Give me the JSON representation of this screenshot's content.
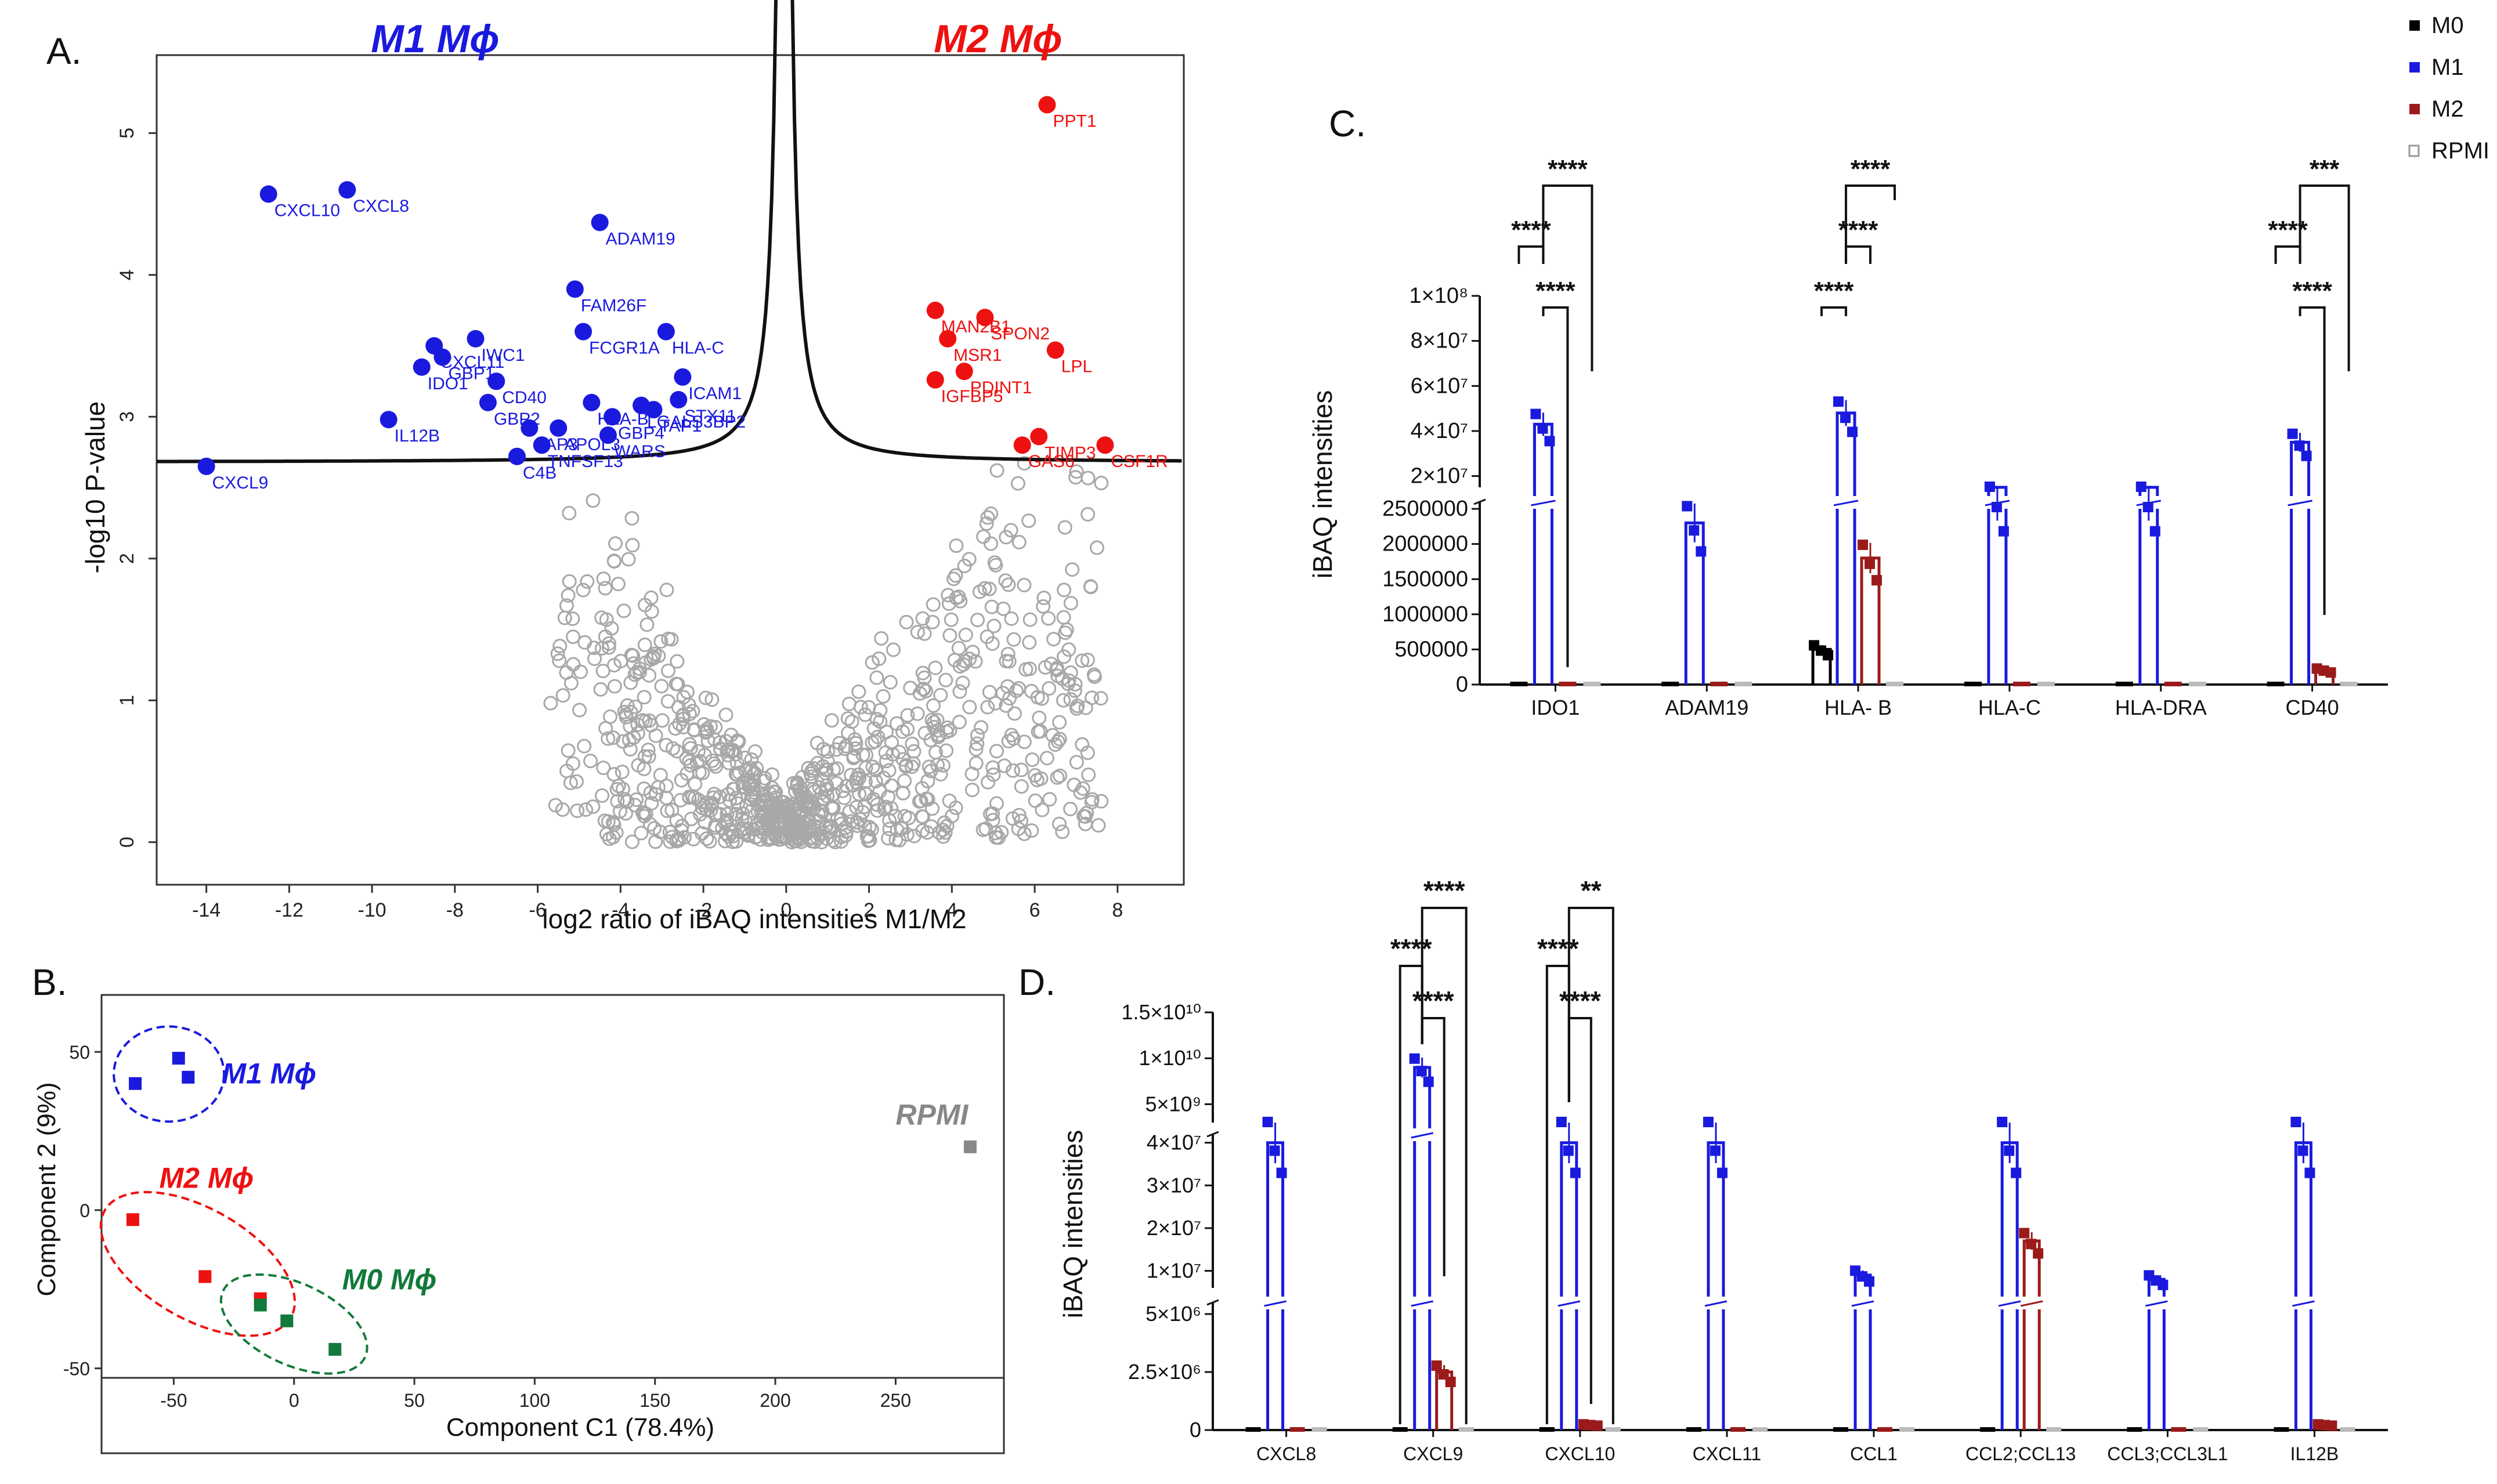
{
  "colors": {
    "m0": "#000000",
    "m1": "#1a1adf",
    "m2": "#9b1b1b",
    "rpmi": "#9a9a9a",
    "red": "#ee1111",
    "green": "#127a3a",
    "grey": "#666666",
    "bg_grey": "#a8a8a8"
  },
  "legend": {
    "items": [
      {
        "label": "M0",
        "color": "#000000"
      },
      {
        "label": "M1",
        "color": "#1a1adf"
      },
      {
        "label": "M2",
        "color": "#9b1b1b"
      },
      {
        "label": "RPMI",
        "color": "#9a9a9a"
      }
    ]
  },
  "chart_data": [
    {
      "panel": "A.",
      "type": "scatter",
      "title_left": "M1 Mϕ",
      "title_right": "M2 Mϕ",
      "xlabel": "log2 ratio of iBAQ intensities M1/M2",
      "ylabel": "-log10 P-value",
      "xlim": [
        -15.2,
        9.6
      ],
      "ylim": [
        -0.3,
        5.55
      ],
      "xticks": [
        -14,
        -12,
        -10,
        -8,
        -6,
        -4,
        -2,
        0,
        2,
        4,
        6,
        8
      ],
      "yticks": [
        0,
        1,
        2,
        3,
        4,
        5
      ],
      "m1_points": [
        {
          "x": -14.0,
          "y": 2.65,
          "label": "CXCL9"
        },
        {
          "x": -12.5,
          "y": 4.57,
          "label": "CXCL10"
        },
        {
          "x": -10.6,
          "y": 4.6,
          "label": "CXCL8"
        },
        {
          "x": -4.5,
          "y": 4.37,
          "label": "ADAM19"
        },
        {
          "x": -5.1,
          "y": 3.9,
          "label": "FAM26F"
        },
        {
          "x": -4.9,
          "y": 3.6,
          "label": "FCGR1A"
        },
        {
          "x": -2.9,
          "y": 3.6,
          "label": "HLA-C"
        },
        {
          "x": -8.5,
          "y": 3.5,
          "label": "CXCL11"
        },
        {
          "x": -7.5,
          "y": 3.55,
          "label": "IWC1"
        },
        {
          "x": -8.3,
          "y": 3.42,
          "label": "GBP1"
        },
        {
          "x": -8.8,
          "y": 3.35,
          "label": "IDO1"
        },
        {
          "x": -7.0,
          "y": 3.25,
          "label": "CD40"
        },
        {
          "x": -7.2,
          "y": 3.1,
          "label": "GBP2"
        },
        {
          "x": -9.6,
          "y": 2.98,
          "label": "IL12B"
        },
        {
          "x": -2.5,
          "y": 3.28,
          "label": "ICAM1"
        },
        {
          "x": -2.6,
          "y": 3.12,
          "label": "STX11"
        },
        {
          "x": -3.5,
          "y": 3.08,
          "label": "LGALS3BP2"
        },
        {
          "x": -4.7,
          "y": 3.1,
          "label": "HLA-B"
        },
        {
          "x": -3.2,
          "y": 3.05,
          "label": "TAP1"
        },
        {
          "x": -4.2,
          "y": 3.0,
          "label": "GBP4"
        },
        {
          "x": -5.5,
          "y": 2.92,
          "label": "APOL3"
        },
        {
          "x": -6.2,
          "y": 2.92,
          "label": "LAP3"
        },
        {
          "x": -4.3,
          "y": 2.87,
          "label": "WARS"
        },
        {
          "x": -5.9,
          "y": 2.8,
          "label": "TNFSF13"
        },
        {
          "x": -6.5,
          "y": 2.72,
          "label": "C4B"
        }
      ],
      "m2_points": [
        {
          "x": 6.3,
          "y": 5.2,
          "label": "PPT1"
        },
        {
          "x": 3.6,
          "y": 3.75,
          "label": "MAN2B1"
        },
        {
          "x": 4.8,
          "y": 3.7,
          "label": "SPON2"
        },
        {
          "x": 3.9,
          "y": 3.55,
          "label": "MSR1"
        },
        {
          "x": 6.5,
          "y": 3.47,
          "label": "LPL"
        },
        {
          "x": 4.3,
          "y": 3.32,
          "label": "PDINT1"
        },
        {
          "x": 3.6,
          "y": 3.26,
          "label": "IGFBP5"
        },
        {
          "x": 6.1,
          "y": 2.86,
          "label": "TIMP3"
        },
        {
          "x": 5.7,
          "y": 2.8,
          "label": "GAS6"
        },
        {
          "x": 7.7,
          "y": 2.8,
          "label": "CSF1R"
        }
      ],
      "labels_drawn": [
        "CXCL9",
        "CXCL10",
        "CXCL8",
        "ADAM19",
        "FAM26F",
        "FCGR1A",
        "HLA-C",
        "CXCL11",
        "IWC1",
        "GBP1",
        "IDO1",
        "CD40",
        "GBP2",
        "IL12B",
        "ICAM1",
        "STX11",
        "LGALS3BP2",
        "HLA-B",
        "WARS",
        "TNFSF13",
        "C4B",
        "PPT1",
        "MAN2B1",
        "SPON2",
        "MSR1",
        "LPL",
        "PDINT1",
        "IGFBP5",
        "TIMP3",
        "GAS6",
        "CSF1R",
        "APOL3"
      ]
    },
    {
      "panel": "B.",
      "type": "scatter",
      "xlabel": "Component C1 (78.4%)",
      "ylabel": "Component 2 (9%)",
      "xlim": [
        -80,
        295
      ],
      "ylim": [
        -53,
        68
      ],
      "xticks": [
        -50,
        0,
        50,
        100,
        150,
        200,
        250
      ],
      "yticks": [
        -50,
        0,
        50
      ],
      "groups": [
        {
          "name": "M1 Mϕ",
          "color": "#1a1adf",
          "points": [
            [
              -66,
              40
            ],
            [
              -48,
              48
            ],
            [
              -44,
              42
            ]
          ]
        },
        {
          "name": "M2 Mϕ",
          "color": "#ee1111",
          "points": [
            [
              -67,
              -3
            ],
            [
              -37,
              -21
            ],
            [
              -14,
              -28
            ]
          ]
        },
        {
          "name": "M0 Mϕ",
          "color": "#127a3a",
          "points": [
            [
              -14,
              -30
            ],
            [
              -3,
              -35
            ],
            [
              17,
              -44
            ]
          ]
        },
        {
          "name": "RPMI",
          "color": "#888888",
          "points": [
            [
              281,
              20
            ]
          ]
        }
      ]
    },
    {
      "panel": "C.",
      "type": "bar",
      "ylabel": "iBAQ intensities",
      "categories": [
        "IDO1",
        "ADAM19",
        "HLA- B",
        "HLA-C",
        "HLA-DRA",
        "CD40"
      ],
      "series": [
        {
          "name": "M0",
          "values": [
            0,
            0,
            500000,
            0,
            0,
            0
          ]
        },
        {
          "name": "M1",
          "values": [
            43000000,
            2300000,
            48000000,
            2650000,
            2650000,
            35000000
          ]
        },
        {
          "name": "M2",
          "values": [
            0,
            0,
            1800000,
            0,
            0,
            200000
          ]
        },
        {
          "name": "RPMI",
          "values": [
            0,
            0,
            0,
            0,
            0,
            0
          ]
        }
      ],
      "yticks_lower": [
        "0",
        "500000",
        "1000000",
        "1500000",
        "2000000",
        "2500000"
      ],
      "yticks_upper": [
        "2×10⁷",
        "4×10⁷",
        "6×10⁷",
        "8×10⁷",
        "1×10⁸"
      ],
      "significance": [
        {
          "text": "****"
        },
        {
          "text": "****"
        },
        {
          "text": "****"
        },
        {
          "text": "****"
        },
        {
          "text": "****"
        },
        {
          "text": "****"
        },
        {
          "text": "****"
        },
        {
          "text": "****"
        },
        {
          "text": "***"
        }
      ]
    },
    {
      "panel": "D.",
      "type": "bar",
      "ylabel": "iBAQ intensities",
      "categories": [
        "CXCL8",
        "CXCL9",
        "CXCL10",
        "CXCL11",
        "CCL1",
        "CCL2;CCL13",
        "CCL3;CCL3L1",
        "IL12B"
      ],
      "series": [
        {
          "name": "M0",
          "values": [
            0,
            0,
            0,
            0,
            0,
            0,
            0,
            0
          ]
        },
        {
          "name": "M1",
          "values": [
            40000000,
            9000000000,
            40000000,
            40000000,
            9000000,
            40000000,
            8000000,
            40000000
          ]
        },
        {
          "name": "M2",
          "values": [
            0,
            2500000,
            200000,
            0,
            0,
            17000000,
            0,
            200000
          ]
        },
        {
          "name": "RPMI",
          "values": [
            0,
            0,
            0,
            0,
            0,
            0,
            0,
            0
          ]
        }
      ],
      "yticks_lower": [
        "0",
        "2.5×10⁶",
        "5×10⁶"
      ],
      "yticks_middle": [
        "1×10⁷",
        "2×10⁷",
        "3×10⁷",
        "4×10⁷"
      ],
      "yticks_upper": [
        "5×10⁹",
        "1×10¹⁰",
        "1.5×10¹⁰"
      ],
      "significance": [
        {
          "text": "****"
        },
        {
          "text": "****"
        },
        {
          "text": "****"
        },
        {
          "text": "****"
        },
        {
          "text": "****"
        },
        {
          "text": "**"
        }
      ]
    }
  ]
}
